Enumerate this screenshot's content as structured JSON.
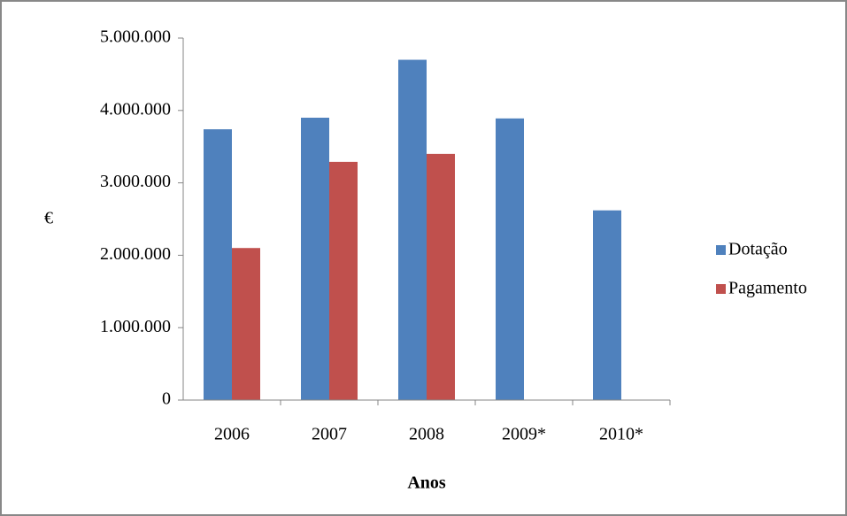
{
  "chart_data": {
    "type": "bar",
    "x_label": "Anos",
    "y_label": "€",
    "categories": [
      "2006",
      "2007",
      "2008",
      "2009*",
      "2010*"
    ],
    "series": [
      {
        "name": "Dotação",
        "color": "#4f81bd",
        "values": [
          3740000,
          3900000,
          4700000,
          3890000,
          2620000
        ]
      },
      {
        "name": "Pagamento",
        "color": "#c0504d",
        "values": [
          2100000,
          3290000,
          3400000,
          null,
          null
        ]
      }
    ],
    "ylim": [
      0,
      5000000
    ],
    "yticks": [
      0,
      {
        "value": 1000000,
        "label": "1.000.000"
      },
      {
        "value": 2000000,
        "label": "2.000.000"
      },
      {
        "value": 3000000,
        "label": "3.000.000"
      },
      {
        "value": 4000000,
        "label": "4.000.000"
      },
      {
        "value": 5000000,
        "label": "5.000.000"
      }
    ],
    "legend": "right"
  }
}
